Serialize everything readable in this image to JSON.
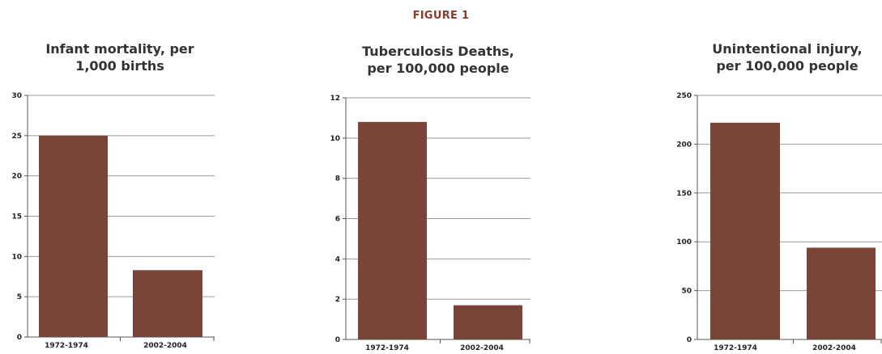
{
  "figure_title": "FIGURE 1",
  "colors": {
    "bar": "#7a4538",
    "title_accent": "#8b3a2b",
    "grid": "#999999",
    "axis": "#555555"
  },
  "chart_data": [
    {
      "type": "bar",
      "title_lines": [
        "Infant mortality, per",
        "1,000 births"
      ],
      "categories": [
        "1972-1974",
        "2002-2004"
      ],
      "values": [
        25,
        8.3
      ],
      "ylim": [
        0,
        30
      ],
      "yticks": [
        0,
        5,
        10,
        15,
        20,
        25,
        30
      ],
      "grid": true
    },
    {
      "type": "bar",
      "title_lines": [
        "Tuberculosis Deaths,",
        "per 100,000 people"
      ],
      "categories": [
        "1972-1974",
        "2002-2004"
      ],
      "values": [
        10.8,
        1.7
      ],
      "ylim": [
        0,
        12
      ],
      "yticks": [
        0,
        2,
        4,
        6,
        8,
        10,
        12
      ],
      "grid": true
    },
    {
      "type": "bar",
      "title_lines": [
        "Unintentional injury,",
        "per 100,000 people"
      ],
      "categories": [
        "1972-1974",
        "2002-2004"
      ],
      "values": [
        222,
        94
      ],
      "ylim": [
        0,
        250
      ],
      "yticks": [
        0,
        50,
        100,
        150,
        200,
        250
      ],
      "grid": true
    }
  ]
}
